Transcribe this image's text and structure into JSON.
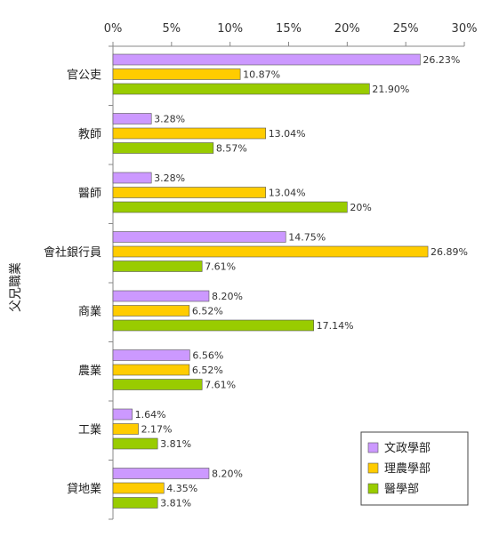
{
  "chart_data": {
    "type": "bar",
    "orientation": "horizontal",
    "ylabel": "父兄職業",
    "xlim": [
      0,
      30
    ],
    "x_ticks": [
      "0%",
      "5%",
      "10%",
      "15%",
      "20%",
      "25%",
      "30%"
    ],
    "x_tick_values": [
      0,
      5,
      10,
      15,
      20,
      25,
      30
    ],
    "x_axis_position": "top",
    "grid": false,
    "legend_position": "bottom-right",
    "categories": [
      "官公吏",
      "教師",
      "醫師",
      "會社銀行員",
      "商業",
      "農業",
      "工業",
      "貸地業"
    ],
    "series": [
      {
        "name": "文政學部",
        "color": "#cc99ff",
        "values": [
          26.23,
          3.28,
          3.28,
          14.75,
          8.2,
          6.56,
          1.64,
          8.2
        ],
        "labels": [
          "26.23%",
          "3.28%",
          "3.28%",
          "14.75%",
          "8.20%",
          "6.56%",
          "1.64%",
          "8.20%"
        ]
      },
      {
        "name": "理農學部",
        "color": "#ffcc00",
        "values": [
          10.87,
          13.04,
          13.04,
          26.89,
          6.52,
          6.52,
          2.17,
          4.35
        ],
        "labels": [
          "10.87%",
          "13.04%",
          "13.04%",
          "26.89%",
          "6.52%",
          "6.52%",
          "2.17%",
          "4.35%"
        ]
      },
      {
        "name": "醫學部",
        "color": "#99cc00",
        "values": [
          21.9,
          8.57,
          20,
          7.61,
          17.14,
          7.61,
          3.81,
          3.81
        ],
        "labels": [
          "21.90%",
          "8.57%",
          "20%",
          "7.61%",
          "17.14%",
          "7.61%",
          "3.81%",
          "3.81%"
        ]
      }
    ]
  }
}
